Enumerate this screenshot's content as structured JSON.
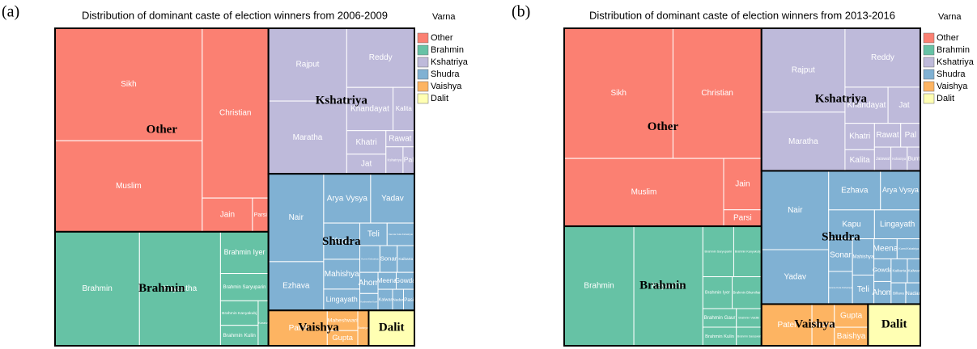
{
  "chart_data": [
    {
      "type": "treemap",
      "panel_label": "(a)",
      "title": "Distribution of dominant caste of election winners from 2006-2009",
      "legend_title": "Varna",
      "series": [
        {
          "name": "Other",
          "color": "#fb8072",
          "items": [
            {
              "name": "Sikh",
              "value": 215
            },
            {
              "name": "Muslim",
              "value": 174
            },
            {
              "name": "Christian",
              "value": 146
            },
            {
              "name": "Jain",
              "value": 22
            },
            {
              "name": "Parsi",
              "value": 7
            }
          ]
        },
        {
          "name": "Brahmin",
          "color": "#66c2a5",
          "items": [
            {
              "name": "Brahmin",
              "value": 125
            },
            {
              "name": "Kayastha",
              "value": 120
            },
            {
              "name": "Brahmin Iyer",
              "value": 26
            },
            {
              "name": "Brahmin Saryuparin",
              "value": 17
            },
            {
              "name": "Brahmin Kanyakubj",
              "value": 12
            },
            {
              "name": "Brahmin Kulin",
              "value": 10
            },
            {
              "name": "Karana",
              "value": 6
            }
          ]
        },
        {
          "name": "Kshatriya",
          "color": "#bebada",
          "items": [
            {
              "name": "Rajput",
              "value": 74
            },
            {
              "name": "Maratha",
              "value": 74
            },
            {
              "name": "Reddy",
              "value": 52
            },
            {
              "name": "Khandayat",
              "value": 26
            },
            {
              "name": "Kalita",
              "value": 12
            },
            {
              "name": "Khatri",
              "value": 12
            },
            {
              "name": "Jat",
              "value": 10
            },
            {
              "name": "Rawat",
              "value": 6
            },
            {
              "name": "Kshatriya",
              "value": 6
            },
            {
              "name": "Pal",
              "value": 4
            }
          ]
        },
        {
          "name": "Shudra",
          "color": "#80b1d3",
          "items": [
            {
              "name": "Nair",
              "value": 63
            },
            {
              "name": "Ezhava",
              "value": 35
            },
            {
              "name": "Arya Vysya",
              "value": 30
            },
            {
              "name": "Yadav",
              "value": 28
            },
            {
              "name": "Kapu",
              "value": 17
            },
            {
              "name": "Mahishya",
              "value": 14
            },
            {
              "name": "Lingayath",
              "value": 10
            },
            {
              "name": "Teli",
              "value": 8
            },
            {
              "name": "Vannia Kula Kshatriyar",
              "value": 8
            },
            {
              "name": "Kurmi Kshatriya",
              "value": 7
            },
            {
              "name": "Sonar",
              "value": 6
            },
            {
              "name": "Kaibarta",
              "value": 6
            },
            {
              "name": "Ahom",
              "value": 5
            },
            {
              "name": "Kushwaha Koiri",
              "value": 4
            },
            {
              "name": "Meena",
              "value": 4
            },
            {
              "name": "Gowda",
              "value": 4
            },
            {
              "name": "Kalwar",
              "value": 4
            },
            {
              "name": "Nadar",
              "value": 3
            },
            {
              "name": "Pasi",
              "value": 3
            }
          ]
        },
        {
          "name": "Vaishya",
          "color": "#fdb462",
          "items": [
            {
              "name": "Patel",
              "value": 27
            },
            {
              "name": "Maheshwari",
              "value": 8
            },
            {
              "name": "Gupta",
              "value": 6
            },
            {
              "name": "Baishya",
              "value": 5
            }
          ]
        },
        {
          "name": "Dalit",
          "color": "#ffffb3",
          "items": [
            {
              "name": null,
              "value": 21
            }
          ]
        }
      ]
    },
    {
      "type": "treemap",
      "panel_label": "(b)",
      "title": "Distribution of dominant caste of election winners from 2013-2016",
      "legend_title": "Varna",
      "series": [
        {
          "name": "Other",
          "color": "#fb8072",
          "items": [
            {
              "name": "Sikh",
              "value": 182
            },
            {
              "name": "Christian",
              "value": 148
            },
            {
              "name": "Muslim",
              "value": 139
            },
            {
              "name": "Jain",
              "value": 25
            },
            {
              "name": "Parsi",
              "value": 8
            }
          ]
        },
        {
          "name": "Brahmin",
          "color": "#66c2a5",
          "items": [
            {
              "name": "Brahmin",
              "value": 107
            },
            {
              "name": "Kayastha",
              "value": 106
            },
            {
              "name": "Brahmin Saryuparin",
              "value": 20
            },
            {
              "name": "Brahmin Kanyakubj",
              "value": 18
            },
            {
              "name": "Brahmin Iyer",
              "value": 12
            },
            {
              "name": "Brahmin Bhumihar",
              "value": 12
            },
            {
              "name": "Brahmin Gaur",
              "value": 8
            },
            {
              "name": "Brahmin Kulin",
              "value": 8
            },
            {
              "name": "Brahmin Vaidiki",
              "value": 6
            },
            {
              "name": "Brahmin Saraswat",
              "value": 6
            }
          ]
        },
        {
          "name": "Kshatriya",
          "color": "#bebada",
          "items": [
            {
              "name": "Rajput",
              "value": 90
            },
            {
              "name": "Maratha",
              "value": 63
            },
            {
              "name": "Reddy",
              "value": 57
            },
            {
              "name": "Khandayat",
              "value": 20
            },
            {
              "name": "Jat",
              "value": 15
            },
            {
              "name": "Khatri",
              "value": 10
            },
            {
              "name": "Kalita",
              "value": 8
            },
            {
              "name": "Rawat",
              "value": 8
            },
            {
              "name": "Pal",
              "value": 6
            },
            {
              "name": "Jaiswal",
              "value": 5
            },
            {
              "name": "Kshatriya",
              "value": 5
            },
            {
              "name": "Bunt",
              "value": 4
            }
          ]
        },
        {
          "name": "Shudra",
          "color": "#80b1d3",
          "items": [
            {
              "name": "Nair",
              "value": 68
            },
            {
              "name": "Yadav",
              "value": 47
            },
            {
              "name": "Ezhava",
              "value": 26
            },
            {
              "name": "Arya Vysya",
              "value": 20
            },
            {
              "name": "Kapu",
              "value": 17
            },
            {
              "name": "Lingayath",
              "value": 17
            },
            {
              "name": "Sonar",
              "value": 10
            },
            {
              "name": "Vannia Kula Kshatriyar",
              "value": 10
            },
            {
              "name": "Mahishya",
              "value": 10
            },
            {
              "name": "Teli",
              "value": 8
            },
            {
              "name": "Meena",
              "value": 6
            },
            {
              "name": "Kurmi Kshatriya",
              "value": 6
            },
            {
              "name": "Gowda",
              "value": 5
            },
            {
              "name": "Ahom",
              "value": 5
            },
            {
              "name": "Kaibarta",
              "value": 5
            },
            {
              "name": "Kalwar",
              "value": 4
            },
            {
              "name": "Billava",
              "value": 4
            },
            {
              "name": "Nadar",
              "value": 4
            }
          ]
        },
        {
          "name": "Vaishya",
          "color": "#fdb462",
          "items": [
            {
              "name": "Patel",
              "value": 27
            },
            {
              "name": "Arora",
              "value": 12
            },
            {
              "name": "Gupta",
              "value": 10
            },
            {
              "name": "Baishya",
              "value": 8
            }
          ]
        },
        {
          "name": "Dalit",
          "color": "#ffffb3",
          "items": [
            {
              "name": null,
              "value": 28
            }
          ]
        }
      ]
    }
  ]
}
